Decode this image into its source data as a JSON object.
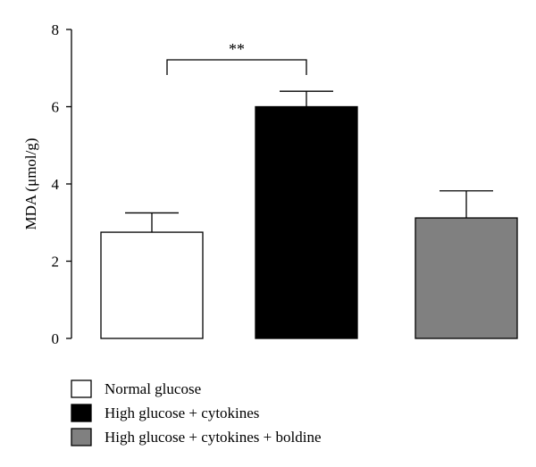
{
  "chart_data": {
    "type": "bar",
    "categories": [
      "Normal glucose",
      "High glucose + cytokines",
      "High glucose + cytokines + boldine"
    ],
    "values": [
      2.75,
      6.0,
      3.12
    ],
    "errors": [
      0.5,
      0.4,
      0.7
    ],
    "colors": [
      "#ffffff",
      "#000000",
      "#808080"
    ],
    "ylabel": "MDA (μmol/g)",
    "ylim": [
      0,
      8
    ],
    "yticks": [
      "0",
      "2",
      "4",
      "6",
      "8"
    ],
    "legend": {
      "placement": "bottom",
      "entries": [
        "Normal glucose",
        "High glucose + cytokines",
        "High glucose + cytokines + boldine"
      ]
    },
    "annotations": [
      {
        "type": "significance-bracket",
        "between": [
          0,
          1
        ],
        "text": "**"
      }
    ]
  }
}
